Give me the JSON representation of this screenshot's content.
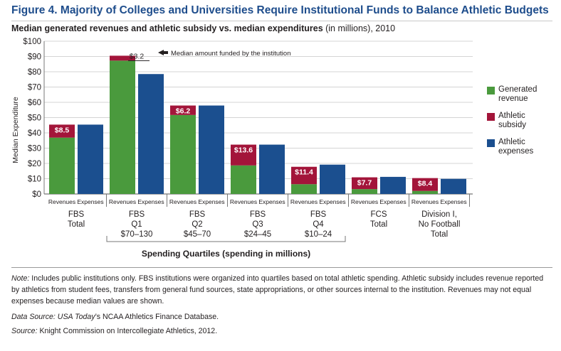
{
  "figure_title": "Figure 4. Majority of Colleges and Universities Require Institutional Funds to Balance Athletic Budgets",
  "subtitle_bold": "Median generated revenues and athletic subsidy vs. median expenditures",
  "subtitle_rest": " (in millions), 2010",
  "colors": {
    "generated": "#4a9a3d",
    "subsidy": "#a3153a",
    "expenses": "#1b4f8f",
    "title": "#1e4d8c"
  },
  "chart_data": {
    "type": "bar",
    "ylabel": "Median Expenditure",
    "ylim": [
      0,
      100
    ],
    "yticks": [
      "$0",
      "$10",
      "$20",
      "$30",
      "$40",
      "$50",
      "$60",
      "$70",
      "$80",
      "$90",
      "$100"
    ],
    "bar_labels": [
      "Revenues",
      "Expenses"
    ],
    "groups": [
      {
        "label_lines": [
          "FBS",
          "Total"
        ],
        "generated": 36.9,
        "subsidy": 8.5,
        "subsidy_label": "$8.5",
        "expenses": 45.4
      },
      {
        "label_lines": [
          "FBS",
          "Q1",
          "$70–130"
        ],
        "generated": 87.3,
        "subsidy": 3.2,
        "subsidy_label": "$3.2",
        "expenses": 78.5
      },
      {
        "label_lines": [
          "FBS",
          "Q2",
          "$45–70"
        ],
        "generated": 51.7,
        "subsidy": 6.2,
        "subsidy_label": "$6.2",
        "expenses": 57.9
      },
      {
        "label_lines": [
          "FBS",
          "Q3",
          "$24–45"
        ],
        "generated": 18.7,
        "subsidy": 13.6,
        "subsidy_label": "$13.6",
        "expenses": 32.3
      },
      {
        "label_lines": [
          "FBS",
          "Q4",
          "$10–24"
        ],
        "generated": 6.4,
        "subsidy": 11.4,
        "subsidy_label": "$11.4",
        "expenses": 19.2
      },
      {
        "label_lines": [
          "FCS",
          "Total"
        ],
        "generated": 3.2,
        "subsidy": 7.7,
        "subsidy_label": "$7.7",
        "expenses": 11.2
      },
      {
        "label_lines": [
          "Division I,",
          "No Football",
          "Total"
        ],
        "generated": 2.0,
        "subsidy": 8.4,
        "subsidy_label": "$8.4",
        "expenses": 9.9
      }
    ],
    "annotation": "Median amount funded by the institution",
    "quartile_bracket_label": "Spending Quartiles (spending in millions)",
    "legend": [
      {
        "key": "generated",
        "label_lines": [
          "Generated",
          "revenue"
        ]
      },
      {
        "key": "subsidy",
        "label_lines": [
          "Athletic",
          "subsidy"
        ]
      },
      {
        "key": "expenses",
        "label_lines": [
          "Athletic",
          "expenses"
        ]
      }
    ]
  },
  "notes": {
    "note_label": "Note:",
    "note_text": " Includes public institutions only. FBS institutions were organized into quartiles based on total athletic spending. Athletic subsidy includes revenue reported by athletics from student fees, transfers from general fund sources, state appropriations, or other sources internal to the institution. Revenues may not equal expenses because median values are shown.",
    "data_source_label": "Data Source:",
    "data_source_italic": " USA Today",
    "data_source_rest": "’s NCAA Athletics Finance Database.",
    "source_label": "Source:",
    "source_rest": " Knight Commission on Intercollegiate Athletics, 2012."
  }
}
